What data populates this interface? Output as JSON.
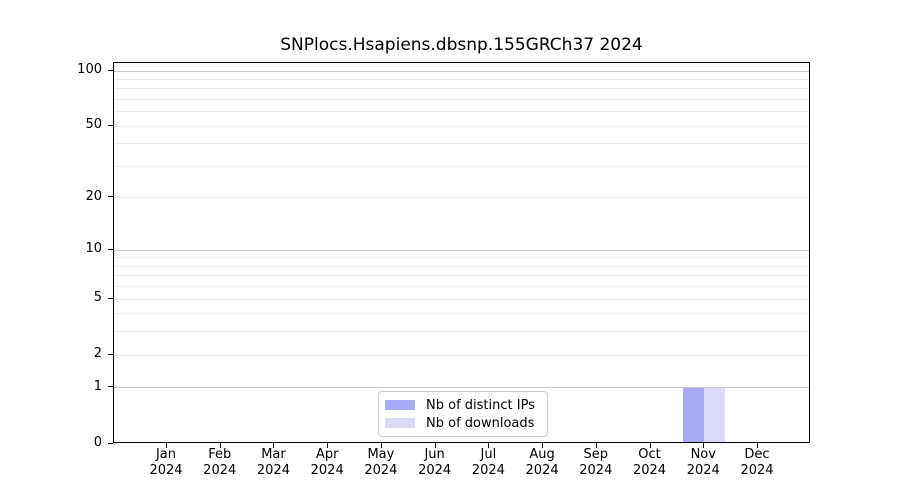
{
  "title": "SNPlocs.Hsapiens.dbsnp.155GRCh37 2024",
  "chart_data": {
    "type": "bar",
    "title": "SNPlocs.Hsapiens.dbsnp.155GRCh37 2024",
    "categories": [
      "Jan 2024",
      "Feb 2024",
      "Mar 2024",
      "Apr 2024",
      "May 2024",
      "Jun 2024",
      "Jul 2024",
      "Aug 2024",
      "Sep 2024",
      "Oct 2024",
      "Nov 2024",
      "Dec 2024"
    ],
    "series": [
      {
        "name": "Nb of distinct IPs",
        "color": "#a8a8f5",
        "values": [
          0,
          0,
          0,
          0,
          0,
          0,
          0,
          0,
          0,
          0,
          1,
          0
        ]
      },
      {
        "name": "Nb of downloads",
        "color": "#dadaf8",
        "values": [
          0,
          0,
          0,
          0,
          0,
          0,
          0,
          0,
          0,
          0,
          1,
          0
        ]
      }
    ],
    "xlabel": "",
    "ylabel": "",
    "ylim": [
      0,
      100
    ],
    "y_scale": "log1p",
    "y_ticks": [
      0,
      1,
      2,
      5,
      10,
      20,
      50,
      100
    ],
    "major_gridlines": [
      1,
      10,
      100
    ],
    "minor_gridlines": [
      2,
      3,
      4,
      5,
      6,
      7,
      8,
      9,
      20,
      30,
      40,
      50,
      60,
      70,
      80,
      90
    ],
    "grid": true,
    "legend_position": "lower center"
  },
  "colors": {
    "axis": "#000000",
    "grid_major": "#c9c9c9",
    "grid_minor": "#ededed",
    "background": "#ffffff",
    "bar_distinct_ips": "#a8a8f5",
    "bar_downloads": "#dadaf8",
    "legend_border": "#cccccc"
  }
}
